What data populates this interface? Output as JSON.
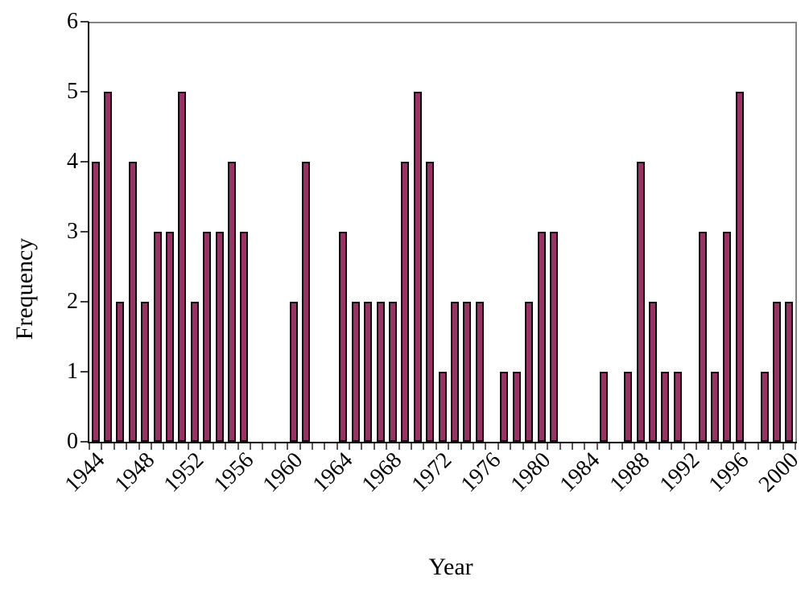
{
  "chart_data": {
    "type": "bar",
    "title": "",
    "xlabel": "Year",
    "ylabel": "Frequency",
    "x": [
      1944,
      1945,
      1946,
      1947,
      1948,
      1949,
      1950,
      1951,
      1952,
      1953,
      1954,
      1955,
      1956,
      1957,
      1958,
      1959,
      1960,
      1961,
      1962,
      1963,
      1964,
      1965,
      1966,
      1967,
      1968,
      1969,
      1970,
      1971,
      1972,
      1973,
      1974,
      1975,
      1976,
      1977,
      1978,
      1979,
      1980,
      1981,
      1982,
      1983,
      1984,
      1985,
      1986,
      1987,
      1988,
      1989,
      1990,
      1991,
      1992,
      1993,
      1994,
      1995,
      1996,
      1997,
      1998,
      1999,
      2000
    ],
    "values": [
      4,
      5,
      2,
      4,
      2,
      3,
      3,
      5,
      2,
      3,
      3,
      4,
      3,
      0,
      0,
      0,
      2,
      4,
      0,
      0,
      3,
      2,
      2,
      2,
      2,
      4,
      5,
      4,
      1,
      2,
      2,
      2,
      0,
      1,
      1,
      2,
      3,
      3,
      0,
      0,
      0,
      1,
      0,
      1,
      4,
      2,
      1,
      1,
      0,
      3,
      1,
      3,
      5,
      0,
      1,
      2,
      2
    ],
    "ylim": [
      0,
      6
    ],
    "yticks": [
      "0",
      "1",
      "2",
      "3",
      "4",
      "5",
      "6"
    ],
    "x_tick_labels": [
      "1944",
      "1948",
      "1952",
      "1956",
      "1960",
      "1964",
      "1968",
      "1972",
      "1976",
      "1980",
      "1984",
      "1988",
      "1992",
      "1996",
      "2000"
    ],
    "bar_fill": "#993366",
    "bar_border": "#0d0d0d",
    "axis_color": "#000000",
    "frame_color": "#848484",
    "grid": "off",
    "legend": "none"
  }
}
